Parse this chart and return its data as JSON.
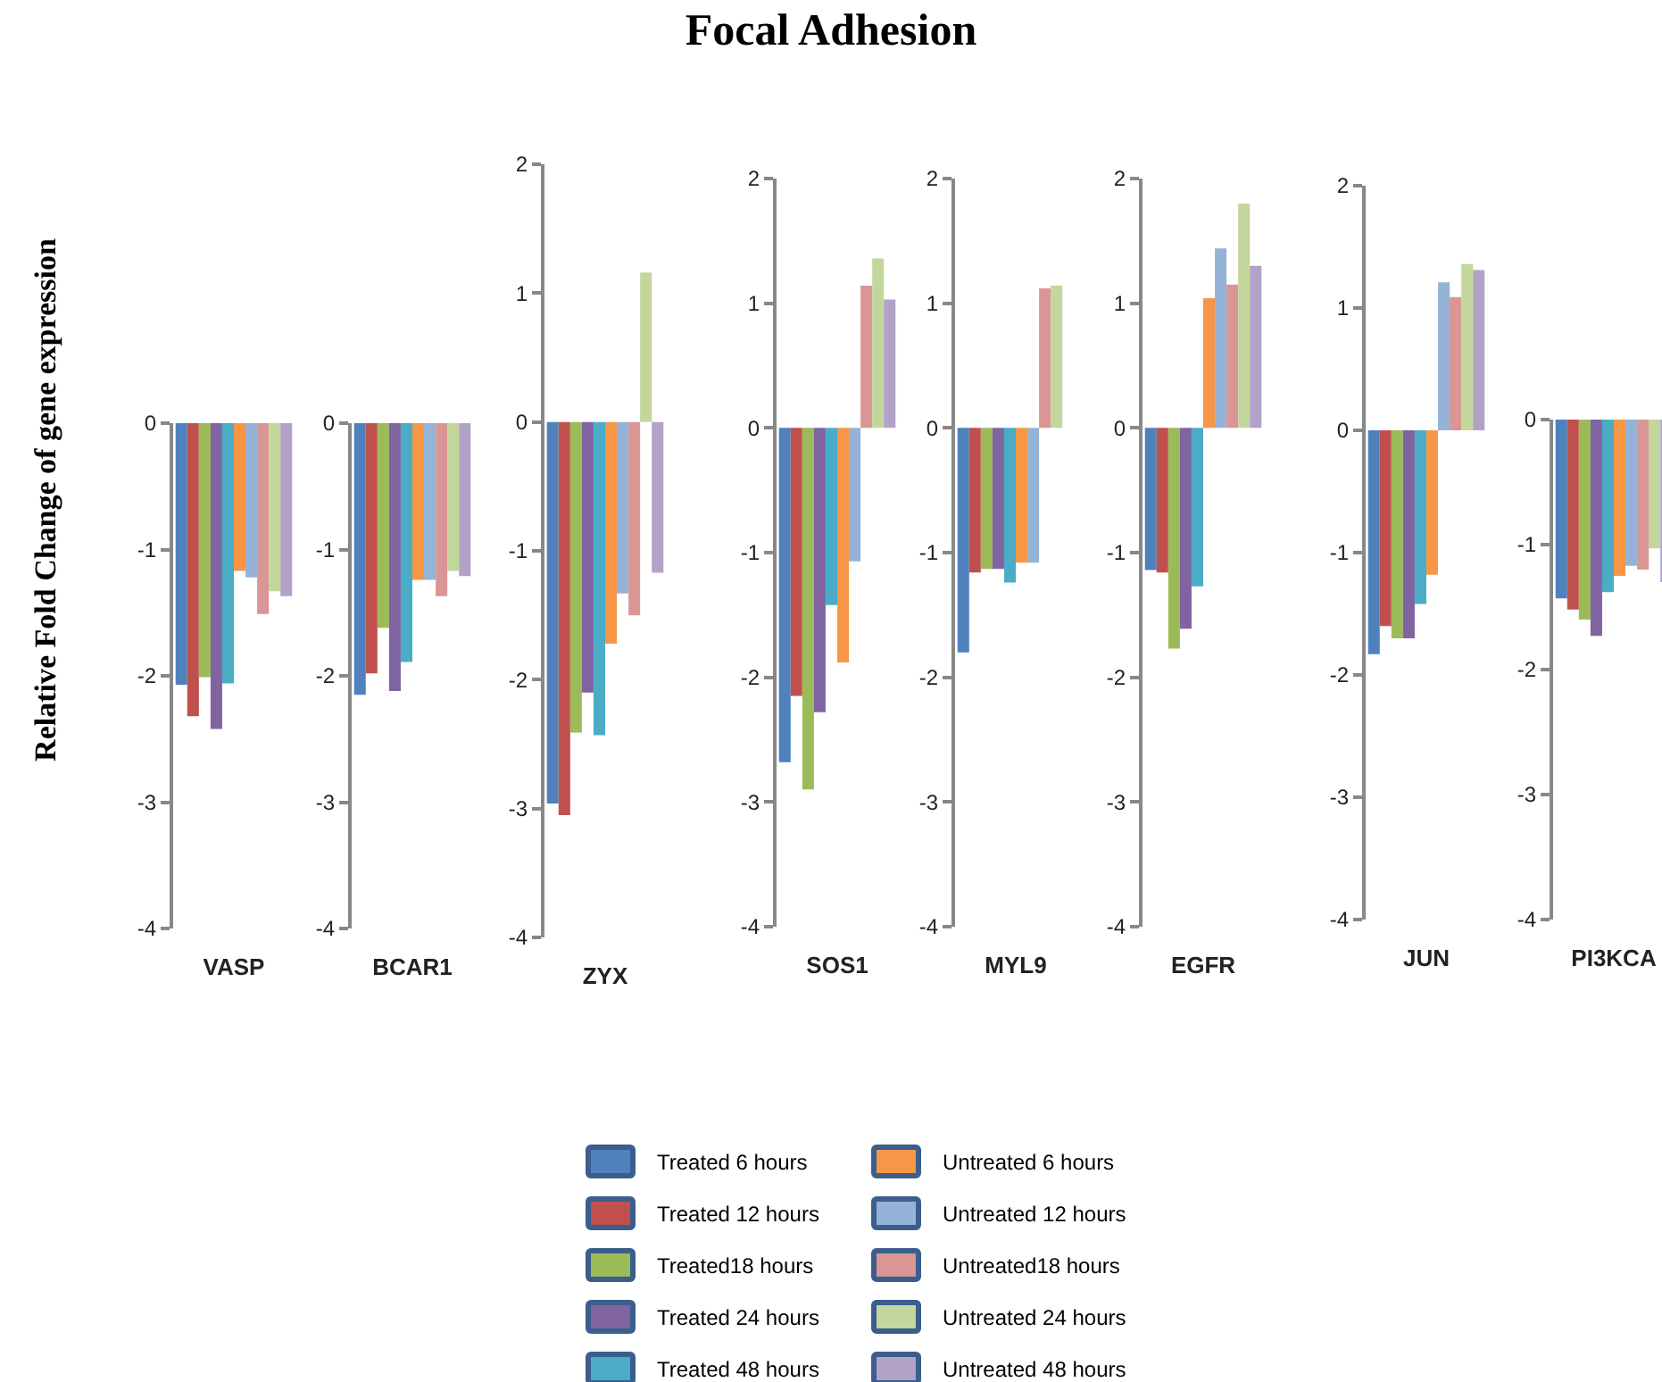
{
  "chart_data": [
    {
      "type": "bar",
      "ylabel": "Relative Fold Change of gene expression",
      "legend": "bottom",
      "categories": [
        "VASP"
      ],
      "ylim": [
        -4,
        0
      ],
      "yticks": [
        0,
        -1,
        -2,
        -3,
        -4
      ],
      "series": [
        {
          "name": "Treated 6 hours",
          "color": "#4f81bd",
          "values": [
            -2.07
          ]
        },
        {
          "name": "Treated 12 hours",
          "color": "#c0504d",
          "values": [
            -2.32
          ]
        },
        {
          "name": "Treated18 hours",
          "color": "#9bbb59",
          "values": [
            -2.01
          ]
        },
        {
          "name": "Treated 24 hours",
          "color": "#8064a2",
          "values": [
            -2.42
          ]
        },
        {
          "name": "Treated 48 hours",
          "color": "#4bacc6",
          "values": [
            -2.06
          ]
        },
        {
          "name": "Untreated 6 hours",
          "color": "#f79646",
          "values": [
            -1.17
          ]
        },
        {
          "name": "Untreated 12 hours",
          "color": "#95b3d7",
          "values": [
            -1.22
          ]
        },
        {
          "name": "Untreated18 hours",
          "color": "#d99694",
          "values": [
            -1.51
          ]
        },
        {
          "name": "Untreated 24 hours",
          "color": "#c3d69b",
          "values": [
            -1.33
          ]
        },
        {
          "name": "Untreated 48 hours",
          "color": "#b3a2c7",
          "values": [
            -1.37
          ]
        }
      ]
    },
    {
      "type": "bar",
      "categories": [
        "BCAR1"
      ],
      "ylim": [
        -4,
        0
      ],
      "yticks": [
        0,
        -1,
        -2,
        -3,
        -4
      ],
      "series": [
        {
          "color": "#4f81bd",
          "values": [
            -2.15
          ]
        },
        {
          "color": "#c0504d",
          "values": [
            -1.98
          ]
        },
        {
          "color": "#9bbb59",
          "values": [
            -1.62
          ]
        },
        {
          "color": "#8064a2",
          "values": [
            -2.12
          ]
        },
        {
          "color": "#4bacc6",
          "values": [
            -1.89
          ]
        },
        {
          "color": "#f79646",
          "values": [
            -1.24
          ]
        },
        {
          "color": "#95b3d7",
          "values": [
            -1.24
          ]
        },
        {
          "color": "#d99694",
          "values": [
            -1.37
          ]
        },
        {
          "color": "#c3d69b",
          "values": [
            -1.17
          ]
        },
        {
          "color": "#b3a2c7",
          "values": [
            -1.21
          ]
        }
      ]
    },
    {
      "type": "bar",
      "categories": [
        "ZYX"
      ],
      "ylim": [
        -4,
        2
      ],
      "yticks": [
        2,
        1,
        0,
        -1,
        -2,
        -3,
        -4
      ],
      "series": [
        {
          "color": "#4f81bd",
          "values": [
            -2.96
          ]
        },
        {
          "color": "#c0504d",
          "values": [
            -3.05
          ]
        },
        {
          "color": "#9bbb59",
          "values": [
            -2.41
          ]
        },
        {
          "color": "#8064a2",
          "values": [
            -2.1
          ]
        },
        {
          "color": "#4bacc6",
          "values": [
            -2.43
          ]
        },
        {
          "color": "#f79646",
          "values": [
            -1.72
          ]
        },
        {
          "color": "#95b3d7",
          "values": [
            -1.33
          ]
        },
        {
          "color": "#d99694",
          "values": [
            -1.5
          ]
        },
        {
          "color": "#c3d69b",
          "values": [
            1.16
          ]
        },
        {
          "color": "#b3a2c7",
          "values": [
            -1.17
          ]
        }
      ]
    },
    {
      "type": "bar",
      "title": "Focal Adhesion",
      "categories": [
        "SOS1"
      ],
      "ylim": [
        -4,
        2
      ],
      "yticks": [
        2,
        1,
        0,
        -1,
        -2,
        -3,
        -4
      ],
      "series": [
        {
          "color": "#4f81bd",
          "values": [
            -2.68
          ]
        },
        {
          "color": "#c0504d",
          "values": [
            -2.15
          ]
        },
        {
          "color": "#9bbb59",
          "values": [
            -2.9
          ]
        },
        {
          "color": "#8064a2",
          "values": [
            -2.28
          ]
        },
        {
          "color": "#4bacc6",
          "values": [
            -1.42
          ]
        },
        {
          "color": "#f79646",
          "values": [
            -1.88
          ]
        },
        {
          "color": "#95b3d7",
          "values": [
            -1.07
          ]
        },
        {
          "color": "#d99694",
          "values": [
            1.14
          ]
        },
        {
          "color": "#c3d69b",
          "values": [
            1.36
          ]
        },
        {
          "color": "#b3a2c7",
          "values": [
            1.03
          ]
        }
      ]
    },
    {
      "type": "bar",
      "categories": [
        "MYL9"
      ],
      "ylim": [
        -4,
        2
      ],
      "yticks": [
        2,
        1,
        0,
        -1,
        -2,
        -3,
        -4
      ],
      "series": [
        {
          "color": "#4f81bd",
          "values": [
            -1.8
          ]
        },
        {
          "color": "#c0504d",
          "values": [
            -1.16
          ]
        },
        {
          "color": "#9bbb59",
          "values": [
            -1.13
          ]
        },
        {
          "color": "#8064a2",
          "values": [
            -1.13
          ]
        },
        {
          "color": "#4bacc6",
          "values": [
            -1.24
          ]
        },
        {
          "color": "#f79646",
          "values": [
            -1.08
          ]
        },
        {
          "color": "#95b3d7",
          "values": [
            -1.08
          ]
        },
        {
          "color": "#d99694",
          "values": [
            1.12
          ]
        },
        {
          "color": "#c3d69b",
          "values": [
            1.14
          ]
        },
        {
          "color": "#b3a2c7",
          "values": [
            null
          ]
        }
      ]
    },
    {
      "type": "bar",
      "categories": [
        "EGFR"
      ],
      "ylim": [
        -4,
        2
      ],
      "yticks": [
        2,
        1,
        0,
        -1,
        -2,
        -3,
        -4
      ],
      "series": [
        {
          "color": "#4f81bd",
          "values": [
            -1.14
          ]
        },
        {
          "color": "#c0504d",
          "values": [
            -1.16
          ]
        },
        {
          "color": "#9bbb59",
          "values": [
            -1.77
          ]
        },
        {
          "color": "#8064a2",
          "values": [
            -1.61
          ]
        },
        {
          "color": "#4bacc6",
          "values": [
            -1.27
          ]
        },
        {
          "color": "#f79646",
          "values": [
            1.04
          ]
        },
        {
          "color": "#95b3d7",
          "values": [
            1.44
          ]
        },
        {
          "color": "#d99694",
          "values": [
            1.15
          ]
        },
        {
          "color": "#c3d69b",
          "values": [
            1.8
          ]
        },
        {
          "color": "#b3a2c7",
          "values": [
            1.3
          ]
        }
      ]
    },
    {
      "type": "bar",
      "categories": [
        "JUN"
      ],
      "ylim": [
        -4,
        2
      ],
      "yticks": [
        2,
        1,
        0,
        -1,
        -2,
        -3,
        -4
      ],
      "series": [
        {
          "color": "#4f81bd",
          "values": [
            -1.83
          ]
        },
        {
          "color": "#c0504d",
          "values": [
            -1.6
          ]
        },
        {
          "color": "#9bbb59",
          "values": [
            -1.7
          ]
        },
        {
          "color": "#8064a2",
          "values": [
            -1.7
          ]
        },
        {
          "color": "#4bacc6",
          "values": [
            -1.42
          ]
        },
        {
          "color": "#f79646",
          "values": [
            -1.18
          ]
        },
        {
          "color": "#95b3d7",
          "values": [
            1.21
          ]
        },
        {
          "color": "#d99694",
          "values": [
            1.09
          ]
        },
        {
          "color": "#c3d69b",
          "values": [
            1.36
          ]
        },
        {
          "color": "#b3a2c7",
          "values": [
            1.31
          ]
        }
      ]
    },
    {
      "type": "bar",
      "categories": [
        "PI3KCA"
      ],
      "ylim": [
        -4,
        0
      ],
      "yticks": [
        0,
        -1,
        -2,
        -3,
        -4
      ],
      "series": [
        {
          "color": "#4f81bd",
          "values": [
            -1.43
          ]
        },
        {
          "color": "#c0504d",
          "values": [
            -1.52
          ]
        },
        {
          "color": "#9bbb59",
          "values": [
            -1.6
          ]
        },
        {
          "color": "#8064a2",
          "values": [
            -1.73
          ]
        },
        {
          "color": "#4bacc6",
          "values": [
            -1.38
          ]
        },
        {
          "color": "#f79646",
          "values": [
            -1.25
          ]
        },
        {
          "color": "#95b3d7",
          "values": [
            -1.17
          ]
        },
        {
          "color": "#d99694",
          "values": [
            -1.2
          ]
        },
        {
          "color": "#c3d69b",
          "values": [
            -1.03
          ]
        },
        {
          "color": "#b3a2c7",
          "values": [
            -1.3
          ]
        }
      ]
    }
  ]
}
